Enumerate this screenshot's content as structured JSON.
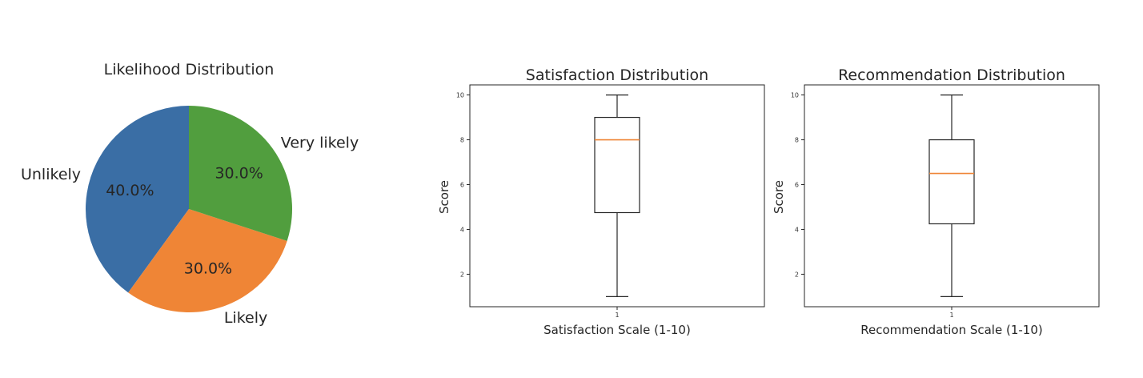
{
  "chart_data": [
    {
      "type": "pie",
      "title": "Likelihood Distribution",
      "categories": [
        "Unlikely",
        "Likely",
        "Very likely"
      ],
      "values": [
        40.0,
        30.0,
        30.0
      ],
      "value_labels": [
        "40.0%",
        "30.0%",
        "30.0%"
      ],
      "colors": [
        "#3a6ea5",
        "#ef8536",
        "#519e3e"
      ]
    },
    {
      "type": "boxplot",
      "title": "Satisfaction Distribution",
      "xlabel": "Satisfaction Scale (1-10)",
      "ylabel": "Score",
      "categories": [
        "1"
      ],
      "yticks": [
        2,
        4,
        6,
        8,
        10
      ],
      "ylim": [
        0.55,
        10.45
      ],
      "whisker_low": 1,
      "q1": 4.75,
      "median": 8,
      "q3": 9,
      "whisker_high": 10,
      "median_color": "#ef8536"
    },
    {
      "type": "boxplot",
      "title": "Recommendation Distribution",
      "xlabel": "Recommendation Scale (1-10)",
      "ylabel": "Score",
      "categories": [
        "1"
      ],
      "yticks": [
        2,
        4,
        6,
        8,
        10
      ],
      "ylim": [
        0.55,
        10.45
      ],
      "whisker_low": 1,
      "q1": 4.25,
      "median": 6.5,
      "q3": 8,
      "whisker_high": 10,
      "median_color": "#ef8536"
    }
  ]
}
